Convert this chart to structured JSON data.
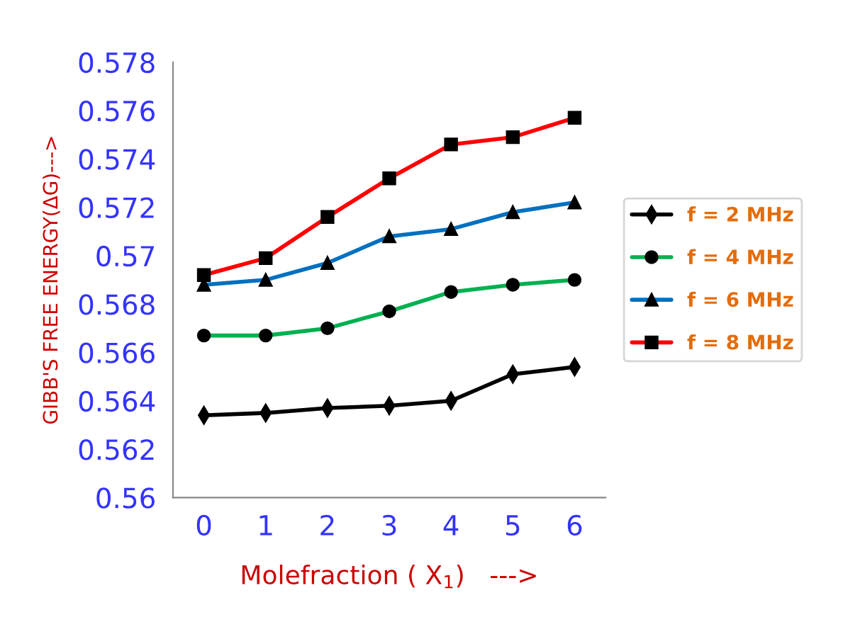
{
  "chart_data": {
    "type": "line",
    "xlabel": "Molefraction ( X$_{1}$)   --->",
    "ylabel": "GIBB'S FREE ENERGY(ΔG)--->",
    "categories": [
      "0",
      "1",
      "2",
      "3",
      "4",
      "5",
      "6"
    ],
    "series": [
      {
        "name": "f = 2 MHz",
        "color": "#000000",
        "marker": "diamond",
        "values": [
          0.5634,
          0.5635,
          0.5637,
          0.5638,
          0.564,
          0.5651,
          0.5654
        ]
      },
      {
        "name": "f = 4 MHz",
        "color": "#00b050",
        "marker": "circle",
        "values": [
          0.5667,
          0.5667,
          0.567,
          0.5677,
          0.5685,
          0.5688,
          0.569
        ]
      },
      {
        "name": "f = 6 MHz",
        "color": "#0070c0",
        "marker": "triangle",
        "values": [
          0.5688,
          0.569,
          0.5697,
          0.5708,
          0.5711,
          0.5718,
          0.5722
        ]
      },
      {
        "name": "f = 8 MHz",
        "color": "#ff0000",
        "marker": "square",
        "values": [
          0.5692,
          0.5699,
          0.5716,
          0.5732,
          0.5746,
          0.5749,
          0.5757
        ]
      }
    ],
    "ylim": [
      0.56,
      0.578
    ],
    "yticks": [
      0.56,
      0.562,
      0.564,
      0.566,
      0.568,
      0.57,
      0.572,
      0.574,
      0.576,
      0.578
    ],
    "grid": false,
    "legend": "right",
    "line_style": "solid"
  }
}
